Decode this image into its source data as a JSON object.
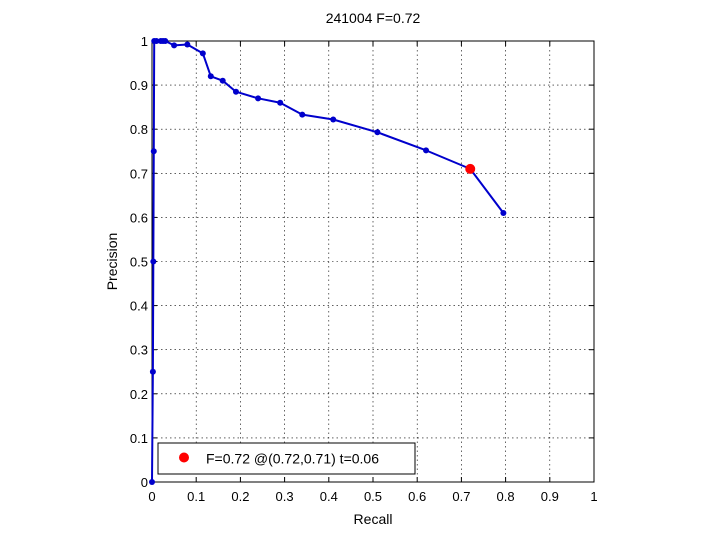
{
  "chart_data": {
    "type": "line",
    "title": "241004 F=0.72",
    "xlabel": "Recall",
    "ylabel": "Precision",
    "xlim": [
      0,
      1
    ],
    "ylim": [
      0,
      1
    ],
    "grid": true,
    "x_ticks": [
      "0",
      "0.1",
      "0.2",
      "0.3",
      "0.4",
      "0.5",
      "0.6",
      "0.7",
      "0.8",
      "0.9",
      "1"
    ],
    "y_ticks": [
      "0",
      "0.1",
      "0.2",
      "0.3",
      "0.4",
      "0.5",
      "0.6",
      "0.7",
      "0.8",
      "0.9",
      "1"
    ],
    "series": [
      {
        "color": "#0000cc",
        "x": [
          0.0,
          0.002,
          0.003,
          0.004,
          0.005,
          0.01,
          0.02,
          0.025,
          0.03,
          0.05,
          0.08,
          0.115,
          0.133,
          0.16,
          0.19,
          0.24,
          0.29,
          0.34,
          0.41,
          0.51,
          0.62,
          0.72,
          0.795
        ],
        "y": [
          0.0,
          0.25,
          0.5,
          0.75,
          1.0,
          1.0,
          1.0,
          1.0,
          1.0,
          0.99,
          0.992,
          0.972,
          0.92,
          0.91,
          0.885,
          0.87,
          0.86,
          0.833,
          0.822,
          0.793,
          0.752,
          0.71,
          0.61
        ]
      }
    ],
    "highlight": {
      "x": 0.72,
      "y": 0.71,
      "color": "#ff0000"
    },
    "legend": {
      "position": "bottom-left",
      "text": "F=0.72 @(0.72,0.71) t=0.06"
    }
  }
}
